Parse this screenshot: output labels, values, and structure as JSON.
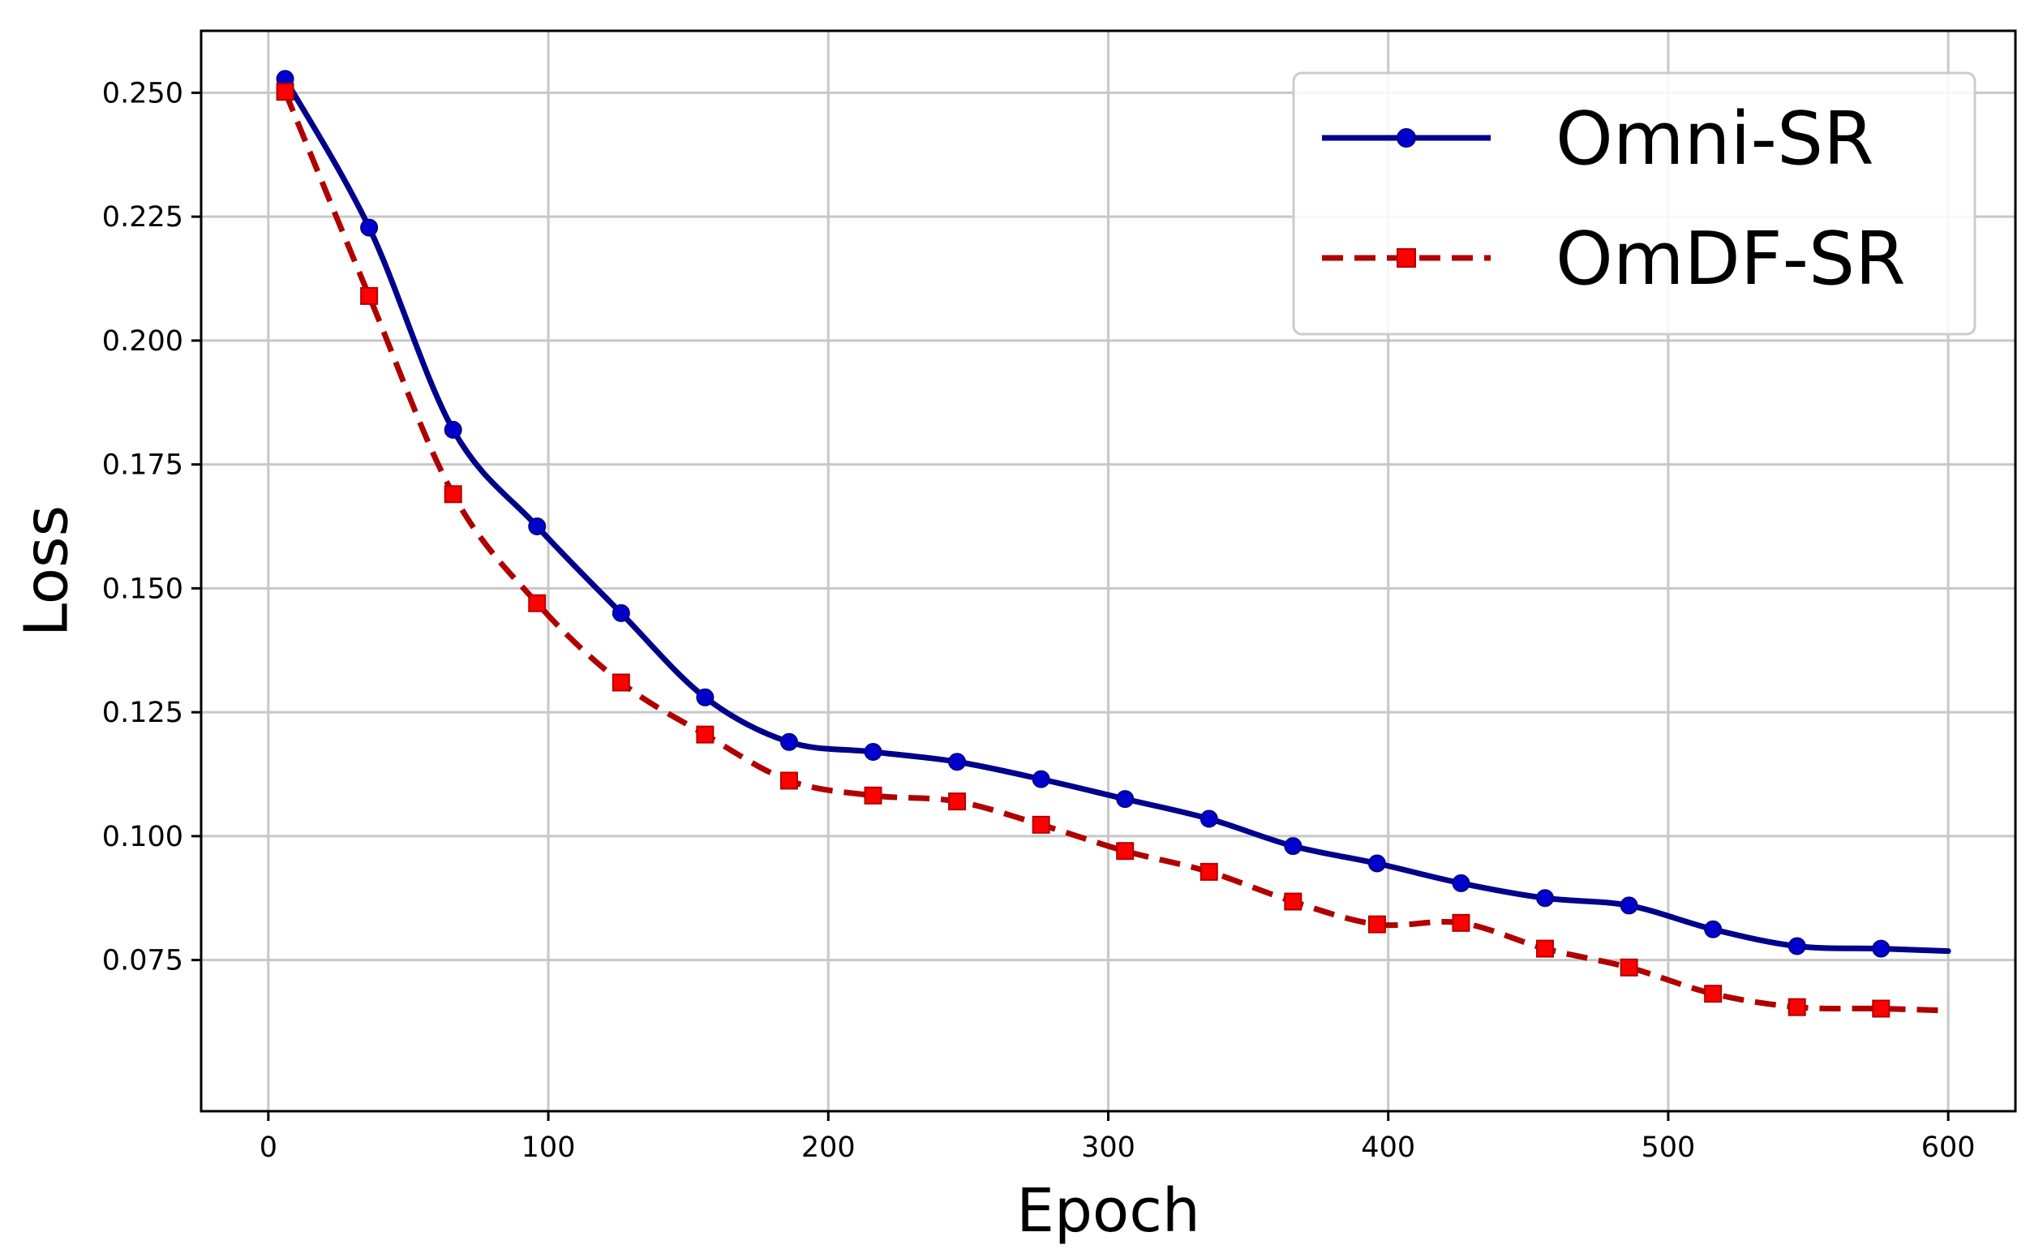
{
  "chart_data": {
    "type": "line",
    "title": "",
    "xlabel": "Epoch",
    "ylabel": "Loss",
    "xlim": [
      -24,
      624
    ],
    "ylim": [
      0.0445,
      0.2625
    ],
    "xticks": [
      0,
      100,
      200,
      300,
      400,
      500,
      600
    ],
    "xtick_labels": [
      "0",
      "100",
      "200",
      "300",
      "400",
      "500",
      "600"
    ],
    "yticks": [
      0.075,
      0.1,
      0.125,
      0.15,
      0.175,
      0.2,
      0.225,
      0.25
    ],
    "ytick_labels": [
      "0.075",
      "0.100",
      "0.125",
      "0.150",
      "0.175",
      "0.200",
      "0.225",
      "0.250"
    ],
    "grid": true,
    "legend_position": "top-right",
    "series": [
      {
        "name": "Omni-SR",
        "color": "#00008b",
        "marker_color": "#0000cd",
        "line_style": "solid",
        "marker": "circle",
        "x": [
          6,
          36,
          66,
          96,
          126,
          156,
          186,
          216,
          246,
          276,
          306,
          336,
          366,
          396,
          426,
          456,
          486,
          516,
          546,
          576,
          600
        ],
        "values": [
          0.2528,
          0.2228,
          0.182,
          0.1625,
          0.145,
          0.128,
          0.119,
          0.117,
          0.115,
          0.1115,
          0.1075,
          0.1035,
          0.098,
          0.0945,
          0.0905,
          0.0875,
          0.086,
          0.0812,
          0.0778,
          0.0773,
          0.0768
        ],
        "marker_indices": [
          0,
          1,
          2,
          3,
          4,
          5,
          6,
          7,
          8,
          9,
          10,
          11,
          12,
          13,
          14,
          15,
          16,
          17,
          18,
          19
        ]
      },
      {
        "name": "OmDF-SR",
        "color": "#b00000",
        "marker_color": "#ff0000",
        "line_style": "dashed",
        "marker": "square",
        "x": [
          6,
          36,
          66,
          96,
          126,
          156,
          186,
          216,
          246,
          276,
          306,
          336,
          366,
          396,
          426,
          456,
          486,
          516,
          546,
          576,
          600
        ],
        "values": [
          0.2502,
          0.209,
          0.169,
          0.147,
          0.131,
          0.1205,
          0.1112,
          0.1082,
          0.107,
          0.1023,
          0.097,
          0.0928,
          0.0868,
          0.0822,
          0.0825,
          0.0773,
          0.0735,
          0.0682,
          0.0655,
          0.0652,
          0.0648
        ],
        "marker_indices": [
          0,
          1,
          2,
          3,
          4,
          5,
          6,
          7,
          8,
          9,
          10,
          11,
          12,
          13,
          14,
          15,
          16,
          17,
          18,
          19
        ]
      }
    ]
  }
}
